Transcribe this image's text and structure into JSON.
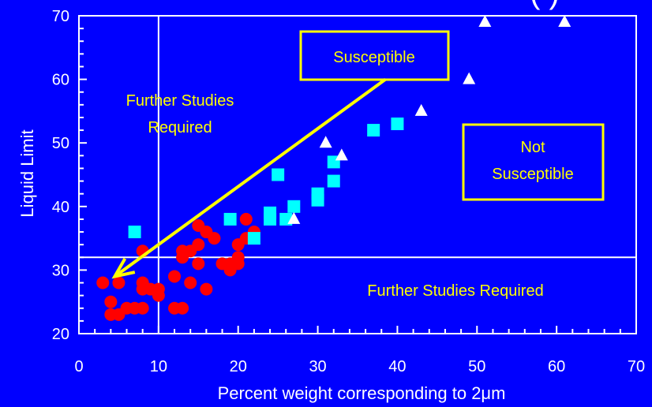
{
  "colors": {
    "background": "#0000ff",
    "axes": "#ffffff",
    "annotation": "#ffff00",
    "series_circle": "#ff0000",
    "series_square": "#00ffff",
    "series_triangle": "#ffffff"
  },
  "chart_data": {
    "type": "scatter",
    "title": "",
    "xlabel": "Percent weight corresponding to 2μm",
    "ylabel": "Liquid Limit",
    "xlim": [
      0,
      70
    ],
    "ylim": [
      20,
      70
    ],
    "x_ticks": [
      0,
      10,
      20,
      30,
      40,
      50,
      60,
      70
    ],
    "y_ticks": [
      20,
      30,
      40,
      50,
      60,
      70
    ],
    "grid": false,
    "boundary_lines": {
      "x": 10,
      "y": 32
    },
    "series": [
      {
        "marker": "circle",
        "color": "#ff0000",
        "points": [
          [
            3,
            28
          ],
          [
            4,
            25
          ],
          [
            4,
            23
          ],
          [
            5,
            28
          ],
          [
            5,
            23
          ],
          [
            6,
            24
          ],
          [
            7,
            24
          ],
          [
            8,
            33
          ],
          [
            8,
            28
          ],
          [
            8,
            27
          ],
          [
            8,
            24
          ],
          [
            9,
            27
          ],
          [
            10,
            27
          ],
          [
            10,
            26
          ],
          [
            12,
            29
          ],
          [
            12,
            24
          ],
          [
            13,
            33
          ],
          [
            13,
            32
          ],
          [
            13,
            24
          ],
          [
            14,
            33
          ],
          [
            14,
            28
          ],
          [
            15,
            37
          ],
          [
            15,
            34
          ],
          [
            15,
            31
          ],
          [
            16,
            36
          ],
          [
            16,
            27
          ],
          [
            17,
            35
          ],
          [
            18,
            31
          ],
          [
            19,
            31
          ],
          [
            19,
            30
          ],
          [
            20,
            34
          ],
          [
            20,
            32
          ],
          [
            20,
            31
          ],
          [
            21,
            38
          ],
          [
            21,
            35
          ],
          [
            22,
            36
          ]
        ]
      },
      {
        "marker": "square",
        "color": "#00ffff",
        "points": [
          [
            7,
            36
          ],
          [
            19,
            38
          ],
          [
            22,
            35
          ],
          [
            24,
            39
          ],
          [
            24,
            38
          ],
          [
            25,
            45
          ],
          [
            26,
            38
          ],
          [
            27,
            40
          ],
          [
            30,
            42
          ],
          [
            30,
            41
          ],
          [
            32,
            47
          ],
          [
            32,
            44
          ],
          [
            37,
            52
          ],
          [
            40,
            53
          ]
        ]
      },
      {
        "marker": "triangle",
        "color": "#ffffff",
        "points": [
          [
            27,
            38
          ],
          [
            31,
            50
          ],
          [
            33,
            48
          ],
          [
            43,
            55
          ],
          [
            49,
            60
          ],
          [
            51,
            69
          ],
          [
            61,
            69
          ]
        ]
      }
    ],
    "annotations": [
      {
        "text": "Susceptible",
        "boxed": true
      },
      {
        "text": "Not Susceptible",
        "boxed": true
      },
      {
        "text": "Further Studies Required",
        "position": "left-upper"
      },
      {
        "text": "Further Studies Required",
        "position": "lower-right"
      }
    ],
    "arrow": {
      "from": [
        38.5,
        60
      ],
      "to": [
        4.5,
        29
      ]
    }
  },
  "labels": {
    "title_fragment": "( )",
    "further_left_line1": "Further Studies",
    "further_left_line2": "Required",
    "susceptible": "Susceptible",
    "not_susceptible_line1": "Not",
    "not_susceptible_line2": "Susceptible",
    "further_bottom": "Further Studies Required"
  }
}
